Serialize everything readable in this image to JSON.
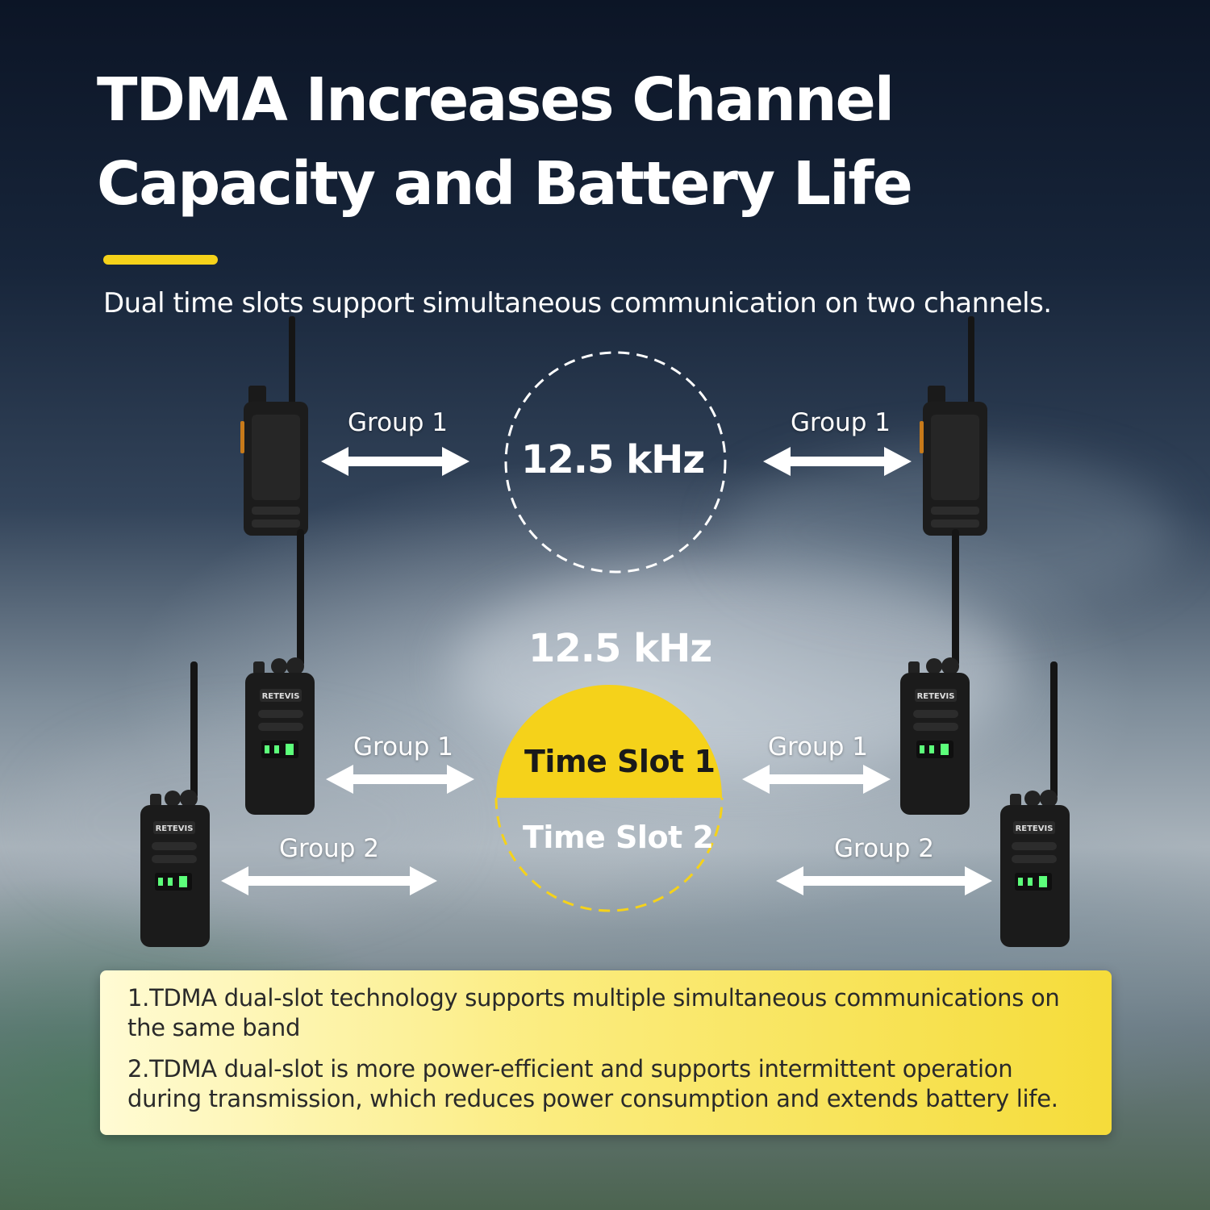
{
  "heading": {
    "line1": "TDMA Increases Channel",
    "line2": "Capacity and Battery Life"
  },
  "subtitle": "Dual time slots support simultaneous communication on two channels.",
  "analog_diagram": {
    "frequency": "12.5 kHz",
    "left_group": "Group 1",
    "right_group": "Group 1"
  },
  "tdma_diagram": {
    "frequency": "12.5 kHz",
    "slot1": "Time Slot 1",
    "slot2": "Time Slot 2",
    "left_upper_group": "Group 1",
    "left_lower_group": "Group 2",
    "right_upper_group": "Group 1",
    "right_lower_group": "Group 2"
  },
  "radio_brand": "RETEVIS",
  "notes": [
    "1.TDMA dual-slot technology supports multiple simultaneous communications on the same band",
    "2.TDMA dual-slot is more power-efficient and supports intermittent operation during transmission, which reduces power consumption and extends battery life."
  ],
  "colors": {
    "accent": "#f5d21a",
    "slot1_fill": "#f5d21a",
    "slot2_dash": "#f5d21a",
    "text": "#ffffff"
  }
}
